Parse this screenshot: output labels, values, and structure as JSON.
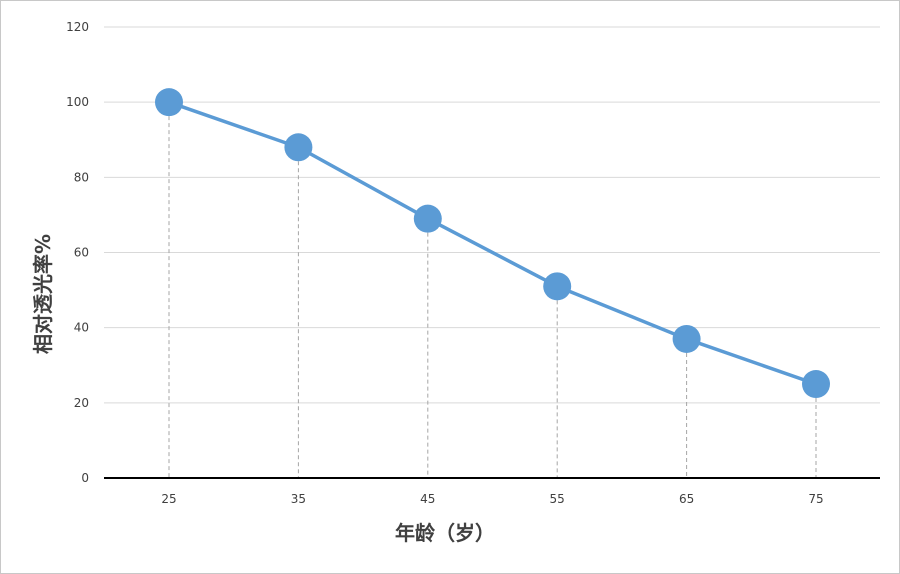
{
  "chart_data": {
    "type": "line",
    "x": [
      25,
      35,
      45,
      55,
      65,
      75
    ],
    "series": [
      {
        "values": [
          100,
          88,
          69,
          51,
          37,
          25
        ]
      }
    ],
    "xlabel": "年龄（岁）",
    "ylabel": "相对透光率%",
    "ylim": [
      0,
      120
    ],
    "yticks": [
      0,
      20,
      40,
      60,
      80,
      100,
      120
    ],
    "xticks": [
      "25",
      "35",
      "45",
      "55",
      "65",
      "75"
    ],
    "grid": "horizontal",
    "drop_lines": true,
    "colors": {
      "series": "#5b9bd5",
      "grid": "#d9d9d9",
      "axis": "#000000",
      "drop_line": "#a6a6a6"
    }
  }
}
